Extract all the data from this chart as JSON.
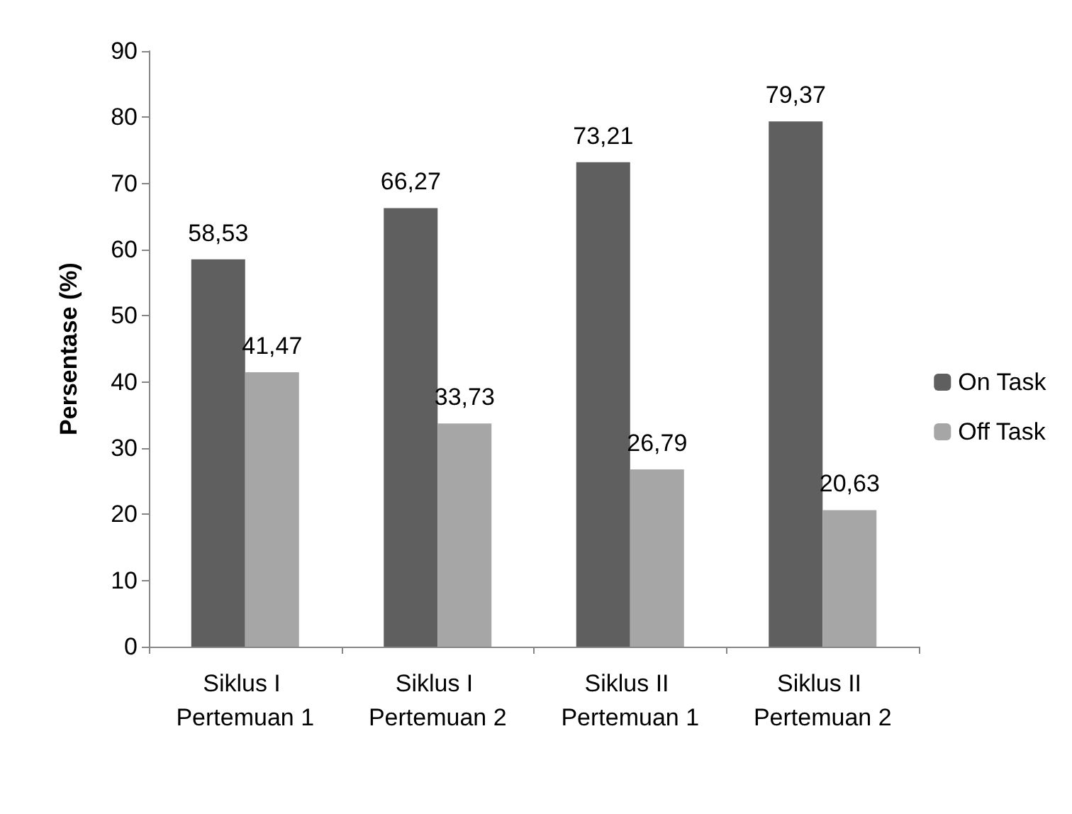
{
  "chart_data": {
    "type": "bar",
    "ylabel": "Persentase (%)",
    "categories": [
      "Siklus I Pertemuan 1",
      "Siklus I Pertemuan 2",
      "Siklus II Pertemuan 1",
      "Siklus II Pertemuan 2"
    ],
    "series": [
      {
        "name": "On Task",
        "color": "#5f5f5f",
        "values": [
          58.53,
          66.27,
          73.21,
          79.37
        ],
        "value_labels": [
          "58,53",
          "66,27",
          "73,21",
          "79,37"
        ]
      },
      {
        "name": "Off Task",
        "color": "#a6a6a6",
        "values": [
          41.47,
          33.73,
          26.79,
          20.63
        ],
        "value_labels": [
          "41,47",
          "33,73",
          "26,79",
          "20,63"
        ]
      }
    ],
    "ylim": [
      0,
      90
    ],
    "yticks": [
      0,
      10,
      20,
      30,
      40,
      50,
      60,
      70,
      80,
      90
    ],
    "grid": false,
    "legend": "right"
  }
}
